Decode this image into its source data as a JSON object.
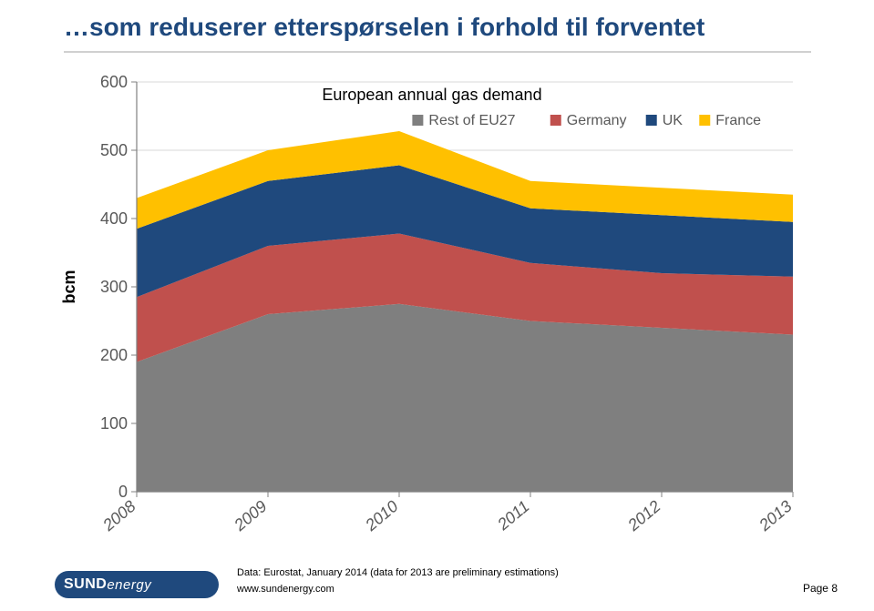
{
  "title": {
    "text": "…som reduserer etterspørselen i forhold til forventet",
    "color": "#1f497d",
    "fontsize": 28
  },
  "chart": {
    "type": "area",
    "subtitle": "European annual gas demand",
    "subtitle_fontsize": 18,
    "subtitle_color": "#000000",
    "ylabel": "bcm",
    "ylabel_fontsize": 18,
    "ylabel_color": "#000000",
    "ylim": [
      0,
      600
    ],
    "ytick_step": 100,
    "yticks": [
      0,
      100,
      200,
      300,
      400,
      500,
      600
    ],
    "categories": [
      "2008",
      "2009",
      "2010",
      "2011",
      "2012",
      "2013"
    ],
    "x_tick_rotation": -40,
    "series": [
      {
        "name": "Rest of EU27",
        "color": "#7f7f7f",
        "values": [
          190,
          260,
          275,
          250,
          240,
          230
        ]
      },
      {
        "name": "Germany",
        "color": "#c0504d",
        "values": [
          95,
          100,
          103,
          85,
          80,
          85
        ]
      },
      {
        "name": "UK",
        "color": "#1f497d",
        "values": [
          100,
          95,
          100,
          80,
          85,
          80
        ]
      },
      {
        "name": "France",
        "color": "#ffc000",
        "values": [
          45,
          45,
          50,
          40,
          40,
          40
        ]
      }
    ],
    "legend": {
      "markers": "square",
      "position": "top-right-inside",
      "fontsize": 16
    },
    "grid": {
      "show_y": true,
      "color": "#d9d9d9"
    },
    "axis_color": "#808080",
    "tick_fontsize": 18,
    "tick_color": "#595959",
    "background_color": "#ffffff"
  },
  "footer": {
    "logo": {
      "main": "SUND",
      "sub": "energy",
      "bg": "#1f497d"
    },
    "source": "Data: Eurostat, January 2014 (data for 2013 are preliminary estimations)",
    "site": "www.sundenergy.com",
    "page": "Page 8"
  }
}
